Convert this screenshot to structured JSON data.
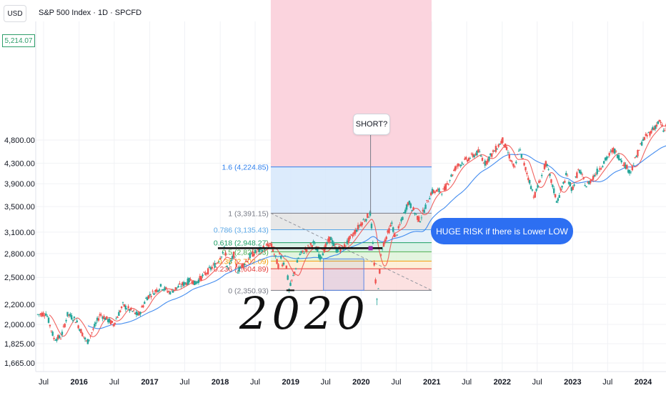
{
  "header": {
    "currency": "USD",
    "title": "S&P 500 Index · 1D · SPCFD",
    "last_price": "5,214.07"
  },
  "annotations": {
    "short_label": "SHORT?",
    "callout": "HUGE RISK if there is Lower LOW",
    "handwritten_year": "2020"
  },
  "colors": {
    "candle_up": "#26a69a",
    "candle_down": "#ef5350",
    "ma_fast": "#ef5350",
    "ma_slow": "#2f80ed",
    "fib_upper_zone": "#fbd4de",
    "fib_ext_zone": "#d6e8fb",
    "callout_bg": "#2d6ff2",
    "price_tag": "#2e9e6a"
  },
  "chart_data": {
    "type": "candlestick",
    "title": "S&P 500 Index · 1D · SPCFD",
    "y_scale": "log",
    "y_ticks": [
      {
        "label": "4,800.00",
        "value": 4800
      },
      {
        "label": "4,300.00",
        "value": 4300
      },
      {
        "label": "3,900.00",
        "value": 3900
      },
      {
        "label": "3,500.00",
        "value": 3500
      },
      {
        "label": "3,100.00",
        "value": 3100
      },
      {
        "label": "2,800.00",
        "value": 2800
      },
      {
        "label": "2,500.00",
        "value": 2500
      },
      {
        "label": "2,200.00",
        "value": 2200
      },
      {
        "label": "2,000.00",
        "value": 2000
      },
      {
        "label": "1,825.00",
        "value": 1825
      },
      {
        "label": "1,665.00",
        "value": 1665
      }
    ],
    "x_ticks": [
      {
        "label": "Jul",
        "date": "2015-07-01",
        "bold": false
      },
      {
        "label": "2016",
        "date": "2016-01-01",
        "bold": true
      },
      {
        "label": "Jul",
        "date": "2016-07-01",
        "bold": false
      },
      {
        "label": "2017",
        "date": "2017-01-01",
        "bold": true
      },
      {
        "label": "Jul",
        "date": "2017-07-01",
        "bold": false
      },
      {
        "label": "2018",
        "date": "2018-01-01",
        "bold": true
      },
      {
        "label": "Jul",
        "date": "2018-07-01",
        "bold": false
      },
      {
        "label": "2019",
        "date": "2019-01-01",
        "bold": true
      },
      {
        "label": "Jul",
        "date": "2019-07-01",
        "bold": false
      },
      {
        "label": "2020",
        "date": "2020-01-01",
        "bold": true
      },
      {
        "label": "Jul",
        "date": "2020-07-01",
        "bold": false
      },
      {
        "label": "2021",
        "date": "2021-01-01",
        "bold": true
      },
      {
        "label": "Jul",
        "date": "2021-07-01",
        "bold": false
      },
      {
        "label": "2022",
        "date": "2022-01-01",
        "bold": true
      },
      {
        "label": "Jul",
        "date": "2022-07-01",
        "bold": false
      },
      {
        "label": "2023",
        "date": "2023-01-01",
        "bold": true
      },
      {
        "label": "Jul",
        "date": "2023-07-01",
        "bold": false
      },
      {
        "label": "2024",
        "date": "2024-01-01",
        "bold": true
      }
    ],
    "price_path": [
      {
        "date": "2015-06-01",
        "price": 2095
      },
      {
        "date": "2015-07-15",
        "price": 2110
      },
      {
        "date": "2015-08-24",
        "price": 1870
      },
      {
        "date": "2015-09-29",
        "price": 1880
      },
      {
        "date": "2015-11-03",
        "price": 2100
      },
      {
        "date": "2015-12-15",
        "price": 2040
      },
      {
        "date": "2016-02-11",
        "price": 1830
      },
      {
        "date": "2016-04-20",
        "price": 2100
      },
      {
        "date": "2016-06-27",
        "price": 2000
      },
      {
        "date": "2016-08-15",
        "price": 2190
      },
      {
        "date": "2016-11-04",
        "price": 2085
      },
      {
        "date": "2016-12-15",
        "price": 2270
      },
      {
        "date": "2017-03-01",
        "price": 2395
      },
      {
        "date": "2017-04-13",
        "price": 2330
      },
      {
        "date": "2017-08-08",
        "price": 2480
      },
      {
        "date": "2017-08-21",
        "price": 2425
      },
      {
        "date": "2017-12-15",
        "price": 2680
      },
      {
        "date": "2018-01-26",
        "price": 2872
      },
      {
        "date": "2018-02-08",
        "price": 2580
      },
      {
        "date": "2018-03-12",
        "price": 2785
      },
      {
        "date": "2018-04-02",
        "price": 2580
      },
      {
        "date": "2018-06-12",
        "price": 2785
      },
      {
        "date": "2018-07-25",
        "price": 2845
      },
      {
        "date": "2018-09-20",
        "price": 2930
      },
      {
        "date": "2018-10-29",
        "price": 2640
      },
      {
        "date": "2018-11-07",
        "price": 2810
      },
      {
        "date": "2018-11-23",
        "price": 2630
      },
      {
        "date": "2018-12-03",
        "price": 2790
      },
      {
        "date": "2018-12-24",
        "price": 2351
      },
      {
        "date": "2019-02-15",
        "price": 2775
      },
      {
        "date": "2019-04-30",
        "price": 2945
      },
      {
        "date": "2019-06-03",
        "price": 2745
      },
      {
        "date": "2019-07-26",
        "price": 3025
      },
      {
        "date": "2019-08-23",
        "price": 2845
      },
      {
        "date": "2019-10-03",
        "price": 2885
      },
      {
        "date": "2019-12-31",
        "price": 3230
      },
      {
        "date": "2020-02-19",
        "price": 3391
      },
      {
        "date": "2020-03-23",
        "price": 2237
      },
      {
        "date": "2020-04-17",
        "price": 2875
      },
      {
        "date": "2020-06-08",
        "price": 3230
      },
      {
        "date": "2020-06-26",
        "price": 3010
      },
      {
        "date": "2020-09-02",
        "price": 3580
      },
      {
        "date": "2020-10-30",
        "price": 3270
      },
      {
        "date": "2020-12-31",
        "price": 3756
      },
      {
        "date": "2021-03-04",
        "price": 3770
      },
      {
        "date": "2021-05-07",
        "price": 4230
      },
      {
        "date": "2021-09-02",
        "price": 4540
      },
      {
        "date": "2021-10-04",
        "price": 4300
      },
      {
        "date": "2022-01-03",
        "price": 4800
      },
      {
        "date": "2022-03-08",
        "price": 4170
      },
      {
        "date": "2022-03-29",
        "price": 4630
      },
      {
        "date": "2022-06-16",
        "price": 3666
      },
      {
        "date": "2022-08-16",
        "price": 4305
      },
      {
        "date": "2022-10-12",
        "price": 3577
      },
      {
        "date": "2022-12-01",
        "price": 4080
      },
      {
        "date": "2022-12-28",
        "price": 3783
      },
      {
        "date": "2023-02-02",
        "price": 4180
      },
      {
        "date": "2023-03-13",
        "price": 3855
      },
      {
        "date": "2023-07-31",
        "price": 4590
      },
      {
        "date": "2023-10-27",
        "price": 4117
      },
      {
        "date": "2023-12-28",
        "price": 4780
      },
      {
        "date": "2024-03-28",
        "price": 5254
      },
      {
        "date": "2024-04-19",
        "price": 4967
      },
      {
        "date": "2024-05-03",
        "price": 5214
      }
    ],
    "moving_averages": {
      "fast_lag_days": 60,
      "slow_lag_days": 260
    },
    "fibonacci": {
      "start_date": "2018-09-20",
      "end_date": "2020-12-31",
      "levels": [
        {
          "ratio": "1.6",
          "price": 4224.85,
          "label": "1.6 (4,224.85)",
          "color": "#2f80ed"
        },
        {
          "ratio": "1",
          "price": 3391.15,
          "label": "1 (3,391.15)",
          "color": "#787b86"
        },
        {
          "ratio": "0.786",
          "price": 3135.43,
          "label": "0.786 (3,135.43)",
          "color": "#5aa7e6"
        },
        {
          "ratio": "0.618",
          "price": 2948.27,
          "label": "0.618 (2,948.27)",
          "color": "#1a9e62"
        },
        {
          "ratio": "0.5",
          "price": 2823.53,
          "label": "0.5 (2,823.53)",
          "color": "#4caf50"
        },
        {
          "ratio": "0.38",
          "price": 2702.09,
          "label": "0.38 (2,702.09)",
          "color": "#f29d0a"
        },
        {
          "ratio": "0.236",
          "price": 2604.89,
          "label": "0.236 (2,604.89)",
          "color": "#e53935"
        },
        {
          "ratio": "0",
          "price": 2350.93,
          "label": "0 (2,350.93)",
          "color": "#787b86"
        }
      ]
    },
    "drawn_lines": {
      "resistance": {
        "price": 2872,
        "from": "2017-12-20",
        "to": "2020-04-20"
      },
      "support": {
        "price": 2351,
        "from": "2018-12-10",
        "to": "2019-01-20"
      }
    },
    "rectangles": [
      {
        "from": "2019-06-20",
        "to": "2020-01-15",
        "low": 2351,
        "high": 2730
      }
    ]
  }
}
